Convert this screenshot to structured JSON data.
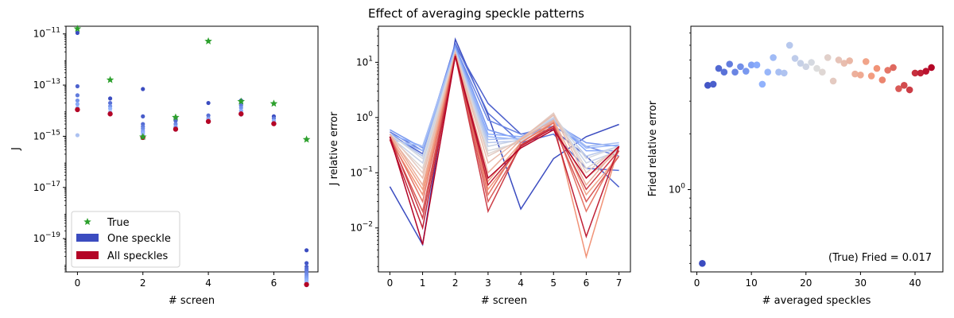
{
  "figure": {
    "title": "Effect of averaging speckle patterns"
  },
  "colors": {
    "true_marker": "#2ca02c",
    "one_speckle": "#3b4cc0",
    "all_speckles": "#b40426",
    "frame": "#000000"
  },
  "chart_data": [
    {
      "type": "scatter",
      "xlabel": "# screen",
      "ylabel": "J",
      "xscale": "linear",
      "yscale": "log",
      "xlim": [
        -0.35,
        7.35
      ],
      "ylim": [
        5e-21,
        2e-11
      ],
      "xticks": [
        0,
        2,
        4,
        6
      ],
      "yticks": [
        {
          "value": 1e-11,
          "label": "10",
          "exp": "−11"
        },
        {
          "value": 1e-13,
          "label": "10",
          "exp": "−13"
        },
        {
          "value": 1e-15,
          "label": "10",
          "exp": "−15"
        },
        {
          "value": 1e-17,
          "label": "10",
          "exp": "−17"
        },
        {
          "value": 1e-19,
          "label": "10",
          "exp": "−19"
        }
      ],
      "x": [
        0,
        1,
        2,
        3,
        4,
        5,
        6,
        7
      ],
      "true_values": [
        1.6e-11,
        1.6e-13,
        9.5e-16,
        5.5e-15,
        5.2e-12,
        2.3e-14,
        1.9e-14,
        7.5e-16
      ],
      "speckle_estimates": [
        [
          1.1e-11,
          9e-14,
          4e-14,
          2.5e-14,
          1.8e-14,
          1.3e-14,
          1.1e-15
        ],
        [
          3e-14,
          2e-14,
          1.5e-14,
          1.2e-14,
          9e-15
        ],
        [
          7e-14,
          6e-15,
          3e-15,
          2.4e-15,
          2e-15,
          1.6e-15,
          1.4e-15,
          1.2e-15,
          1e-15,
          9e-16
        ],
        [
          5e-15,
          4e-15,
          3e-15,
          2.4e-15,
          2e-15,
          1.8e-15
        ],
        [
          2e-14,
          6.5e-15,
          5e-15,
          4.5e-15,
          4e-15
        ],
        [
          2.5e-14,
          2e-14,
          1.6e-14,
          1.3e-14,
          1e-14,
          8e-15,
          7e-15
        ],
        [
          6e-15,
          5e-15,
          4e-15,
          3.5e-15
        ],
        [
          3.5e-20,
          1.1e-20,
          8e-21,
          6.5e-21,
          5.5e-21,
          4.6e-21,
          3.8e-21,
          3.2e-21,
          2.8e-21,
          2.4e-21,
          2.1e-21,
          1.9e-21,
          1.7e-21,
          1.5e-21
        ]
      ],
      "all_speckles_values": [
        1.1e-14,
        7.5e-15,
        9e-16,
        1.9e-15,
        3.8e-15,
        7.5e-15,
        3.1e-15,
        1.6e-21
      ],
      "legend": {
        "placement": "lower-left",
        "entries": [
          {
            "label": "True",
            "marker": "star"
          },
          {
            "label": "One speckle",
            "marker": "patch"
          },
          {
            "label": "All speckles",
            "marker": "patch"
          }
        ]
      }
    },
    {
      "type": "line",
      "xlabel": "# screen",
      "ylabel": "J relative error",
      "xscale": "linear",
      "yscale": "log",
      "xlim": [
        -0.35,
        7.35
      ],
      "ylim": [
        0.0016,
        45
      ],
      "xticks": [
        0,
        1,
        2,
        3,
        4,
        5,
        6,
        7
      ],
      "yticks": [
        {
          "value": 10,
          "label": "10",
          "exp": "1"
        },
        {
          "value": 1,
          "label": "10",
          "exp": "0"
        },
        {
          "value": 0.1,
          "label": "10",
          "exp": "−1"
        },
        {
          "value": 0.01,
          "label": "10",
          "exp": "−2"
        }
      ],
      "x": [
        0,
        1,
        2,
        3,
        4,
        5,
        6,
        7
      ],
      "color_map": "coolwarm",
      "series": [
        {
          "values": [
            0.056,
            0.005,
            26,
            1.1,
            0.022,
            0.18,
            0.45,
            0.75
          ]
        },
        {
          "values": [
            0.5,
            0.22,
            20,
            1.8,
            0.5,
            0.6,
            0.2,
            0.055
          ]
        },
        {
          "values": [
            0.55,
            0.25,
            22,
            1.2,
            0.35,
            0.5,
            0.12,
            0.11
          ]
        },
        {
          "values": [
            0.5,
            0.2,
            19,
            0.9,
            0.5,
            0.7,
            0.3,
            0.2
          ]
        },
        {
          "values": [
            0.6,
            0.28,
            20,
            0.6,
            0.4,
            0.8,
            0.35,
            0.3
          ]
        },
        {
          "values": [
            0.5,
            0.3,
            18,
            0.5,
            0.45,
            0.85,
            0.25,
            0.25
          ]
        },
        {
          "values": [
            0.45,
            0.25,
            17,
            0.45,
            0.4,
            0.9,
            0.28,
            0.32
          ]
        },
        {
          "values": [
            0.4,
            0.3,
            17,
            0.4,
            0.42,
            0.9,
            0.3,
            0.35
          ]
        },
        {
          "values": [
            0.5,
            0.2,
            16,
            0.35,
            0.38,
            0.95,
            0.2,
            0.3
          ]
        },
        {
          "values": [
            0.45,
            0.15,
            16,
            0.3,
            0.4,
            1.0,
            0.15,
            0.25
          ]
        },
        {
          "values": [
            0.5,
            0.18,
            15,
            0.25,
            0.35,
            1.1,
            0.18,
            0.3
          ]
        },
        {
          "values": [
            0.45,
            0.12,
            15,
            0.22,
            0.38,
            1.15,
            0.12,
            0.28
          ]
        },
        {
          "values": [
            0.5,
            0.1,
            15,
            0.2,
            0.4,
            1.2,
            0.1,
            0.3
          ]
        },
        {
          "values": [
            0.45,
            0.08,
            15,
            0.15,
            0.42,
            1.1,
            0.08,
            0.25
          ]
        },
        {
          "values": [
            0.5,
            0.06,
            14,
            0.1,
            0.4,
            0.9,
            0.06,
            0.3
          ]
        },
        {
          "values": [
            0.45,
            0.05,
            14,
            0.07,
            0.35,
            0.85,
            0.04,
            0.2
          ]
        },
        {
          "values": [
            0.4,
            0.04,
            14,
            0.05,
            0.3,
            0.8,
            0.003,
            0.3
          ]
        },
        {
          "values": [
            0.45,
            0.03,
            14,
            0.04,
            0.35,
            0.8,
            0.02,
            0.25
          ]
        },
        {
          "values": [
            0.4,
            0.02,
            13,
            0.03,
            0.3,
            0.7,
            0.03,
            0.2
          ]
        },
        {
          "values": [
            0.45,
            0.015,
            13,
            0.02,
            0.32,
            0.7,
            0.05,
            0.25
          ]
        },
        {
          "values": [
            0.4,
            0.01,
            13,
            0.06,
            0.3,
            0.65,
            0.007,
            0.3
          ]
        },
        {
          "values": [
            0.45,
            0.005,
            13,
            0.08,
            0.28,
            0.6,
            0.08,
            0.3
          ]
        }
      ]
    },
    {
      "type": "scatter",
      "xlabel": "# averaged speckles",
      "ylabel": "Fried relative error",
      "xscale": "linear",
      "yscale": "log",
      "xlim": [
        -1.1,
        45.1
      ],
      "ylim": [
        0.36,
        7.6
      ],
      "xticks": [
        0,
        10,
        20,
        30,
        40
      ],
      "yticks": [
        {
          "value": 1,
          "label": "10",
          "exp": "0"
        }
      ],
      "color_map": "coolwarm",
      "annotation": "(True) Fried = 0.017",
      "x": [
        1,
        2,
        3,
        4,
        5,
        6,
        7,
        8,
        9,
        10,
        11,
        12,
        13,
        14,
        15,
        16,
        17,
        18,
        19,
        20,
        21,
        22,
        23,
        24,
        25,
        26,
        27,
        28,
        29,
        30,
        31,
        32,
        33,
        34,
        35,
        36,
        37,
        38,
        39,
        40,
        41,
        42,
        43
      ],
      "values": [
        0.4,
        3.65,
        3.7,
        4.5,
        4.3,
        4.75,
        4.3,
        4.6,
        4.35,
        4.7,
        4.7,
        3.7,
        4.3,
        5.15,
        4.3,
        4.25,
        6.0,
        5.1,
        4.8,
        4.6,
        4.85,
        4.5,
        4.3,
        5.15,
        3.85,
        5.0,
        4.8,
        4.95,
        4.2,
        4.15,
        4.9,
        4.1,
        4.5,
        3.9,
        4.4,
        4.55,
        3.5,
        3.65,
        3.45,
        4.25,
        4.25,
        4.35,
        4.55
      ]
    }
  ]
}
